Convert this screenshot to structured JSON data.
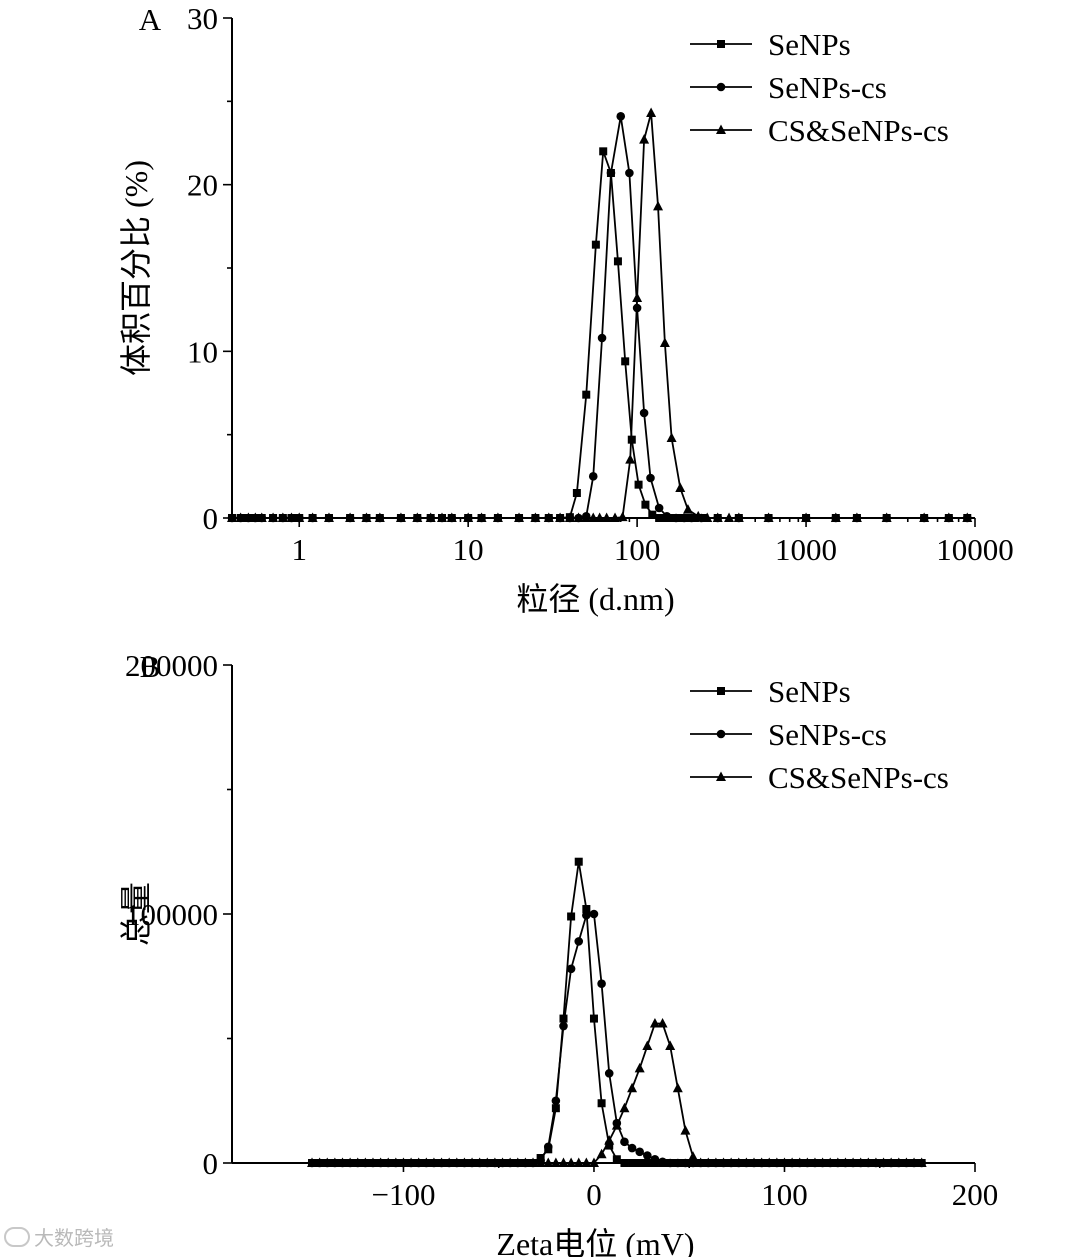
{
  "chart_data": [
    {
      "panel_label": "A",
      "type": "line",
      "xscale": "log",
      "xlim": [
        0.4,
        10000
      ],
      "ylim": [
        0,
        30
      ],
      "xticks": [
        1,
        10,
        100,
        1000,
        10000
      ],
      "xtick_labels": [
        "1",
        "10",
        "100",
        "1000",
        "10000"
      ],
      "yticks": [
        0,
        10,
        20,
        30
      ],
      "ytick_labels": [
        "0",
        "10",
        "20",
        "30"
      ],
      "xlabel": "粒径 (d.nm)",
      "ylabel": "体积百分比 (%)",
      "legend_position": "top-right",
      "series": [
        {
          "name": "SeNPs",
          "marker": "square",
          "x": [
            0.4,
            0.45,
            0.5,
            0.55,
            0.6,
            0.7,
            0.8,
            0.9,
            1,
            1.2,
            1.5,
            2,
            2.5,
            3,
            4,
            5,
            6,
            7,
            8,
            10,
            12,
            15,
            20,
            25,
            30,
            35,
            40,
            44,
            50,
            57,
            63,
            70,
            77,
            85,
            93,
            102,
            112,
            123,
            135,
            150,
            165,
            180,
            200,
            220,
            250,
            300,
            400,
            600,
            1000,
            1500,
            2000,
            3000,
            5000,
            7000,
            9000
          ],
          "y": [
            0,
            0,
            0,
            0,
            0,
            0,
            0,
            0,
            0,
            0,
            0,
            0,
            0,
            0,
            0,
            0,
            0,
            0,
            0,
            0,
            0,
            0,
            0,
            0,
            0,
            0,
            0.05,
            1.5,
            7.4,
            16.4,
            22,
            20.7,
            15.4,
            9.4,
            4.7,
            2,
            0.8,
            0.2,
            0,
            0,
            0,
            0,
            0,
            0,
            0,
            0,
            0,
            0,
            0,
            0,
            0,
            0,
            0,
            0,
            0
          ]
        },
        {
          "name": "SeNPs-cs",
          "marker": "circle",
          "x": [
            0.4,
            0.45,
            0.5,
            0.55,
            0.6,
            0.7,
            0.8,
            0.9,
            1,
            1.2,
            1.5,
            2,
            2.5,
            3,
            4,
            5,
            6,
            7,
            8,
            10,
            12,
            15,
            20,
            25,
            30,
            35,
            40,
            45,
            50,
            55,
            62,
            70,
            80,
            90,
            100,
            110,
            120,
            135,
            150,
            170,
            190,
            210,
            240,
            300,
            400,
            600,
            1000,
            1500,
            2000,
            3000,
            5000,
            7000,
            9000
          ],
          "y": [
            0,
            0,
            0,
            0,
            0,
            0,
            0,
            0,
            0,
            0,
            0,
            0,
            0,
            0,
            0,
            0,
            0,
            0,
            0,
            0,
            0,
            0,
            0,
            0,
            0,
            0,
            0,
            0,
            0.1,
            2.5,
            10.8,
            20.7,
            24.1,
            20.7,
            12.6,
            6.3,
            2.4,
            0.6,
            0.1,
            0,
            0,
            0,
            0,
            0,
            0,
            0,
            0,
            0,
            0,
            0,
            0,
            0,
            0
          ]
        },
        {
          "name": "CS&SeNPs-cs",
          "marker": "triangle",
          "x": [
            0.4,
            0.45,
            0.5,
            0.55,
            0.6,
            0.7,
            0.8,
            0.9,
            1,
            1.2,
            1.5,
            2,
            2.5,
            3,
            4,
            5,
            6,
            7,
            8,
            10,
            12,
            15,
            20,
            25,
            30,
            35,
            40,
            45,
            50,
            55,
            60,
            66,
            74,
            82,
            91,
            100,
            110,
            121,
            133,
            146,
            160,
            180,
            200,
            230,
            260,
            300,
            350,
            400,
            600,
            1000,
            1500,
            2000,
            3000,
            5000,
            7000,
            9000
          ],
          "y": [
            0,
            0,
            0,
            0,
            0,
            0,
            0,
            0,
            0,
            0,
            0,
            0,
            0,
            0,
            0,
            0,
            0,
            0,
            0,
            0,
            0,
            0,
            0,
            0,
            0,
            0,
            0,
            0,
            0,
            0,
            0,
            0,
            0,
            0.05,
            3.5,
            13.2,
            22.7,
            24.3,
            18.7,
            10.5,
            4.8,
            1.8,
            0.5,
            0.1,
            0,
            0,
            0,
            0,
            0,
            0,
            0,
            0,
            0,
            0,
            0,
            0
          ]
        }
      ]
    },
    {
      "panel_label": "B",
      "type": "line",
      "xscale": "linear",
      "xlim": [
        -190,
        200
      ],
      "ylim": [
        0,
        200000
      ],
      "xticks": [
        -100,
        0,
        100,
        200
      ],
      "xtick_labels": [
        "−100",
        "0",
        "100",
        "200"
      ],
      "yticks": [
        0,
        100000,
        200000
      ],
      "ytick_labels": [
        "0",
        "100000",
        "200000"
      ],
      "xlabel": "Zeta电位 (mV)",
      "ylabel": "总量",
      "legend_position": "top-right",
      "series": [
        {
          "name": "SeNPs",
          "marker": "square",
          "x": [
            -148,
            -144,
            -140,
            -136,
            -132,
            -128,
            -124,
            -120,
            -116,
            -112,
            -108,
            -104,
            -100,
            -96,
            -92,
            -88,
            -84,
            -80,
            -76,
            -72,
            -68,
            -64,
            -60,
            -56,
            -52,
            -48,
            -44,
            -40,
            -36,
            -32,
            -28,
            -24,
            -20,
            -16,
            -12,
            -8,
            -4,
            0,
            4,
            8,
            12,
            16,
            20,
            24,
            28,
            32,
            36,
            40,
            44,
            48,
            52,
            56,
            60,
            64,
            68,
            72,
            76,
            80,
            84,
            88,
            92,
            96,
            100,
            104,
            108,
            112,
            116,
            120,
            124,
            128,
            132,
            136,
            140,
            144,
            148,
            152,
            156,
            160,
            164,
            168,
            172
          ],
          "y": [
            0,
            0,
            0,
            0,
            0,
            0,
            0,
            0,
            0,
            0,
            0,
            0,
            0,
            0,
            0,
            0,
            0,
            0,
            0,
            0,
            0,
            0,
            0,
            0,
            0,
            0,
            0,
            0,
            0,
            0,
            2000,
            5500,
            22000,
            58000,
            99000,
            121000,
            102000,
            58000,
            24000,
            7000,
            1500,
            0,
            0,
            0,
            0,
            0,
            0,
            0,
            0,
            0,
            0,
            0,
            0,
            0,
            0,
            0,
            0,
            0,
            0,
            0,
            0,
            0,
            0,
            0,
            0,
            0,
            0,
            0,
            0,
            0,
            0,
            0,
            0,
            0,
            0,
            0,
            0,
            0,
            0,
            0,
            0
          ]
        },
        {
          "name": "SeNPs-cs",
          "marker": "circle",
          "x": [
            -148,
            -144,
            -140,
            -136,
            -132,
            -128,
            -124,
            -120,
            -116,
            -112,
            -108,
            -104,
            -100,
            -96,
            -92,
            -88,
            -84,
            -80,
            -76,
            -72,
            -68,
            -64,
            -60,
            -56,
            -52,
            -48,
            -44,
            -40,
            -36,
            -32,
            -28,
            -24,
            -20,
            -16,
            -12,
            -8,
            -4,
            0,
            4,
            8,
            12,
            16,
            20,
            24,
            28,
            32,
            36,
            40,
            44,
            48,
            52,
            56,
            60,
            64,
            68,
            72,
            76,
            80,
            84,
            88,
            92,
            96,
            100,
            104,
            108,
            112,
            116,
            120,
            124,
            128,
            132,
            136,
            140,
            144,
            148,
            152,
            156,
            160,
            164,
            168,
            172
          ],
          "y": [
            0,
            0,
            0,
            0,
            0,
            0,
            0,
            0,
            0,
            0,
            0,
            0,
            0,
            0,
            0,
            0,
            0,
            0,
            0,
            0,
            0,
            0,
            0,
            0,
            0,
            0,
            0,
            0,
            0,
            0,
            1000,
            6500,
            25000,
            55000,
            78000,
            89000,
            99500,
            100000,
            72000,
            36000,
            16000,
            8500,
            6000,
            4500,
            3000,
            1500,
            500,
            0,
            0,
            0,
            0,
            0,
            0,
            0,
            0,
            0,
            0,
            0,
            0,
            0,
            0,
            0,
            0,
            0,
            0,
            0,
            0,
            0,
            0,
            0,
            0,
            0,
            0,
            0,
            0,
            0,
            0,
            0,
            0,
            0,
            0
          ]
        },
        {
          "name": "CS&SeNPs-cs",
          "marker": "triangle",
          "x": [
            -148,
            -144,
            -140,
            -136,
            -132,
            -128,
            -124,
            -120,
            -116,
            -112,
            -108,
            -104,
            -100,
            -96,
            -92,
            -88,
            -84,
            -80,
            -76,
            -72,
            -68,
            -64,
            -60,
            -56,
            -52,
            -48,
            -44,
            -40,
            -36,
            -32,
            -28,
            -24,
            -20,
            -16,
            -12,
            -8,
            -4,
            0,
            4,
            8,
            12,
            16,
            20,
            24,
            28,
            32,
            36,
            40,
            44,
            48,
            52,
            56,
            60,
            64,
            68,
            72,
            76,
            80,
            84,
            88,
            92,
            96,
            100,
            104,
            108,
            112,
            116,
            120,
            124,
            128,
            132,
            136,
            140,
            144,
            148,
            152,
            156,
            160,
            164,
            168,
            172
          ],
          "y": [
            0,
            0,
            0,
            0,
            0,
            0,
            0,
            0,
            0,
            0,
            0,
            0,
            0,
            0,
            0,
            0,
            0,
            0,
            0,
            0,
            0,
            0,
            0,
            0,
            0,
            0,
            0,
            0,
            0,
            0,
            0,
            0,
            0,
            0,
            0,
            0,
            0,
            0,
            3500,
            9000,
            15000,
            22000,
            30000,
            38000,
            47000,
            56000,
            56000,
            47000,
            30000,
            13000,
            2500,
            0,
            0,
            0,
            0,
            0,
            0,
            0,
            0,
            0,
            0,
            0,
            0,
            0,
            0,
            0,
            0,
            0,
            0,
            0,
            0,
            0,
            0,
            0,
            0,
            0,
            0,
            0,
            0,
            0,
            0
          ]
        }
      ]
    }
  ],
  "watermark": {
    "text": "大数跨境",
    "icon": "cloud-logo-icon"
  }
}
